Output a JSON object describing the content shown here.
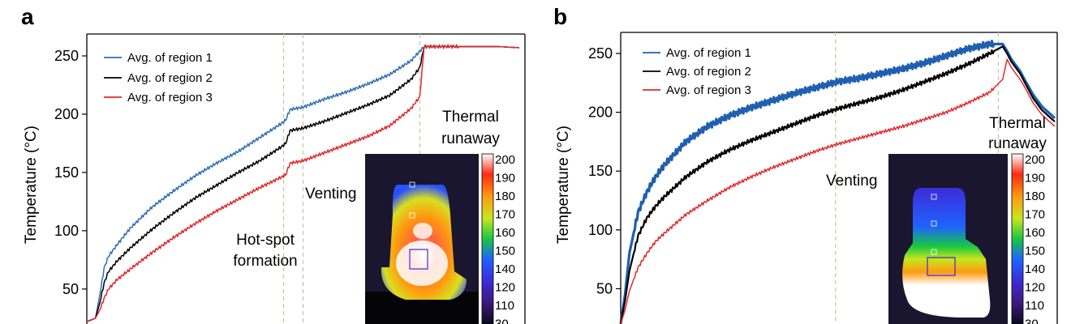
{
  "chart_data": [
    {
      "panel": "a",
      "type": "line",
      "ylabel": "Temperature (°C)",
      "ylim": [
        20,
        270
      ],
      "xlim": [
        0,
        100
      ],
      "yticks": [
        50,
        100,
        150,
        200,
        250
      ],
      "series": [
        {
          "name": "Avg. of region 1",
          "color": "#2f6eb5",
          "x": [
            0,
            2,
            3,
            4,
            5,
            7,
            10,
            15,
            20,
            25,
            30,
            35,
            40,
            45,
            46,
            47,
            50,
            55,
            60,
            65,
            70,
            75,
            77,
            78,
            80,
            85,
            90,
            95,
            100
          ],
          "y": [
            22,
            25,
            45,
            68,
            78,
            88,
            102,
            120,
            134,
            147,
            158,
            168,
            180,
            192,
            195,
            204,
            206,
            213,
            219,
            226,
            234,
            246,
            254,
            258,
            258,
            258,
            258,
            258,
            257
          ]
        },
        {
          "name": "Avg. of region 2",
          "color": "#000000",
          "x": [
            0,
            2,
            3,
            4,
            5,
            7,
            10,
            15,
            20,
            25,
            30,
            35,
            40,
            45,
            46,
            47,
            50,
            55,
            60,
            65,
            70,
            75,
            77,
            78,
            80,
            85,
            90,
            95,
            100
          ],
          "y": [
            22,
            25,
            38,
            55,
            65,
            74,
            85,
            101,
            115,
            128,
            139,
            150,
            160,
            172,
            175,
            186,
            188,
            194,
            201,
            208,
            216,
            230,
            240,
            258,
            258,
            258,
            258,
            258,
            257
          ]
        },
        {
          "name": "Avg. of region 3",
          "color": "#e0292b",
          "x": [
            0,
            2,
            3,
            4,
            5,
            7,
            10,
            15,
            20,
            25,
            30,
            35,
            40,
            45,
            46,
            47,
            50,
            55,
            60,
            65,
            70,
            75,
            77,
            78,
            80,
            85,
            90,
            95,
            100
          ],
          "y": [
            22,
            25,
            32,
            42,
            50,
            58,
            67,
            81,
            94,
            106,
            117,
            127,
            137,
            146,
            148,
            158,
            160,
            167,
            174,
            181,
            190,
            205,
            215,
            258,
            258,
            258,
            258,
            258,
            257
          ]
        }
      ],
      "vlines": [
        45.5,
        50,
        77
      ],
      "annotations": [
        "Hot-spot formation",
        "Venting",
        "Thermal runaway"
      ],
      "inset_colorbar": [
        "200",
        "190",
        "180",
        "170",
        "160",
        "150",
        "140",
        "120",
        "110",
        "30"
      ]
    },
    {
      "panel": "b",
      "type": "line",
      "ylabel": "Temperature (°C)",
      "ylim": [
        20,
        270
      ],
      "xlim": [
        0,
        100
      ],
      "yticks": [
        50,
        100,
        150,
        200,
        250
      ],
      "series": [
        {
          "name": "Avg. of region 1",
          "color": "#1f5fb0",
          "x": [
            0,
            1,
            2,
            4,
            6,
            8,
            10,
            15,
            20,
            25,
            30,
            35,
            40,
            45,
            50,
            55,
            60,
            65,
            70,
            75,
            80,
            85,
            88,
            89,
            90,
            92,
            93,
            95,
            97,
            100
          ],
          "y": [
            20,
            45,
            80,
            115,
            132,
            145,
            155,
            175,
            188,
            197,
            204,
            210,
            216,
            221,
            226,
            229,
            233,
            237,
            242,
            248,
            254,
            258,
            258,
            252,
            245,
            235,
            228,
            215,
            205,
            195
          ]
        },
        {
          "name": "Avg. of region 2",
          "color": "#000000",
          "x": [
            0,
            1,
            2,
            4,
            6,
            8,
            10,
            15,
            20,
            25,
            30,
            35,
            40,
            45,
            50,
            55,
            60,
            65,
            70,
            75,
            80,
            85,
            88,
            89,
            90,
            92,
            93,
            95,
            97,
            100
          ],
          "y": [
            20,
            40,
            65,
            95,
            110,
            120,
            128,
            145,
            158,
            168,
            176,
            183,
            190,
            197,
            203,
            208,
            213,
            219,
            226,
            233,
            241,
            250,
            256,
            250,
            243,
            233,
            226,
            212,
            202,
            192
          ]
        },
        {
          "name": "Avg. of region 3",
          "color": "#e0292b",
          "x": [
            0,
            1,
            2,
            4,
            6,
            8,
            10,
            15,
            20,
            25,
            30,
            35,
            40,
            45,
            50,
            55,
            60,
            65,
            70,
            75,
            80,
            85,
            88,
            89,
            90,
            92,
            93,
            95,
            97,
            100
          ],
          "y": [
            20,
            32,
            48,
            68,
            80,
            90,
            97,
            113,
            125,
            136,
            145,
            153,
            160,
            167,
            173,
            178,
            183,
            188,
            194,
            200,
            208,
            217,
            228,
            245,
            238,
            228,
            222,
            208,
            198,
            188
          ]
        }
      ],
      "vlines": [
        49.5,
        87
      ],
      "annotations": [
        "Venting",
        "Thermal runaway"
      ],
      "inset_colorbar": [
        "200",
        "190",
        "180",
        "170",
        "160",
        "150",
        "140",
        "120",
        "110",
        "30"
      ]
    }
  ]
}
